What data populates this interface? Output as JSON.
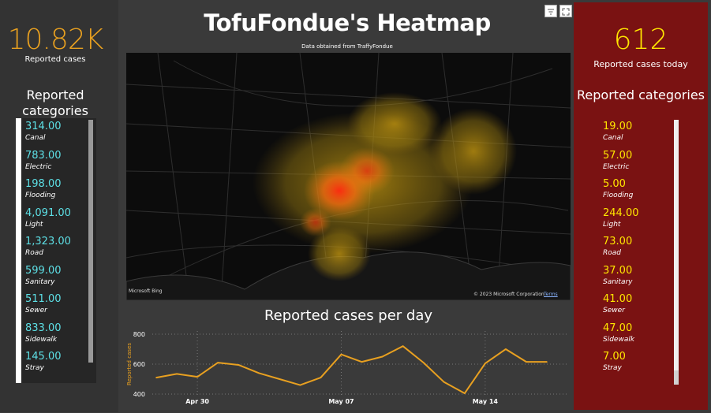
{
  "header": {
    "title": "TofuFondue's Heatmap",
    "subtitle": "Data obtained from TraffyFondue"
  },
  "left_panel": {
    "kpi_value": "10.82K",
    "kpi_label": "Reported cases",
    "categories_title": "Reported categories",
    "items": [
      {
        "value": "314.00",
        "name": "Canal"
      },
      {
        "value": "783.00",
        "name": "Electric"
      },
      {
        "value": "198.00",
        "name": "Flooding"
      },
      {
        "value": "4,091.00",
        "name": "Light"
      },
      {
        "value": "1,323.00",
        "name": "Road"
      },
      {
        "value": "599.00",
        "name": "Sanitary"
      },
      {
        "value": "511.00",
        "name": "Sewer"
      },
      {
        "value": "833.00",
        "name": "Sidewalk"
      },
      {
        "value": "145.00",
        "name": "Stray"
      }
    ]
  },
  "right_panel": {
    "kpi_value": "612",
    "kpi_label": "Reported cases today",
    "categories_title": "Reported categories",
    "items": [
      {
        "value": "19.00",
        "name": "Canal"
      },
      {
        "value": "57.00",
        "name": "Electric"
      },
      {
        "value": "5.00",
        "name": "Flooding"
      },
      {
        "value": "244.00",
        "name": "Light"
      },
      {
        "value": "73.00",
        "name": "Road"
      },
      {
        "value": "37.00",
        "name": "Sanitary"
      },
      {
        "value": "41.00",
        "name": "Sewer"
      },
      {
        "value": "47.00",
        "name": "Sidewalk"
      },
      {
        "value": "7.00",
        "name": "Stray"
      }
    ]
  },
  "map": {
    "attribution_logo": "Microsoft Bing",
    "copyright": "© 2023 Microsoft Corporation",
    "terms": "Terms"
  },
  "icons": {
    "filter": "filter-icon",
    "focus": "focus-mode-icon"
  },
  "colors": {
    "left_accent": "#e8a020",
    "left_values": "#5de0e6",
    "right_panel_bg": "#7a1212",
    "right_accent": "#ffe600",
    "line": "#e8a020"
  },
  "chart_data": {
    "type": "line",
    "title": "Reported cases per day",
    "ylabel": "Reported cases",
    "xlabel": "",
    "ylim": [
      400,
      800
    ],
    "yticks": [
      "400",
      "600",
      "800"
    ],
    "x_tick_labels": [
      "Apr 30",
      "May 07",
      "May 14"
    ],
    "x": [
      "Apr 28",
      "Apr 29",
      "Apr 30",
      "May 01",
      "May 02",
      "May 03",
      "May 04",
      "May 05",
      "May 06",
      "May 07",
      "May 08",
      "May 09",
      "May 10",
      "May 11",
      "May 12",
      "May 13",
      "May 14",
      "May 15",
      "May 16",
      "May 17"
    ],
    "values": [
      510,
      535,
      515,
      610,
      595,
      540,
      500,
      460,
      510,
      665,
      615,
      650,
      720,
      610,
      480,
      405,
      605,
      700,
      615,
      615
    ],
    "grid": true
  }
}
